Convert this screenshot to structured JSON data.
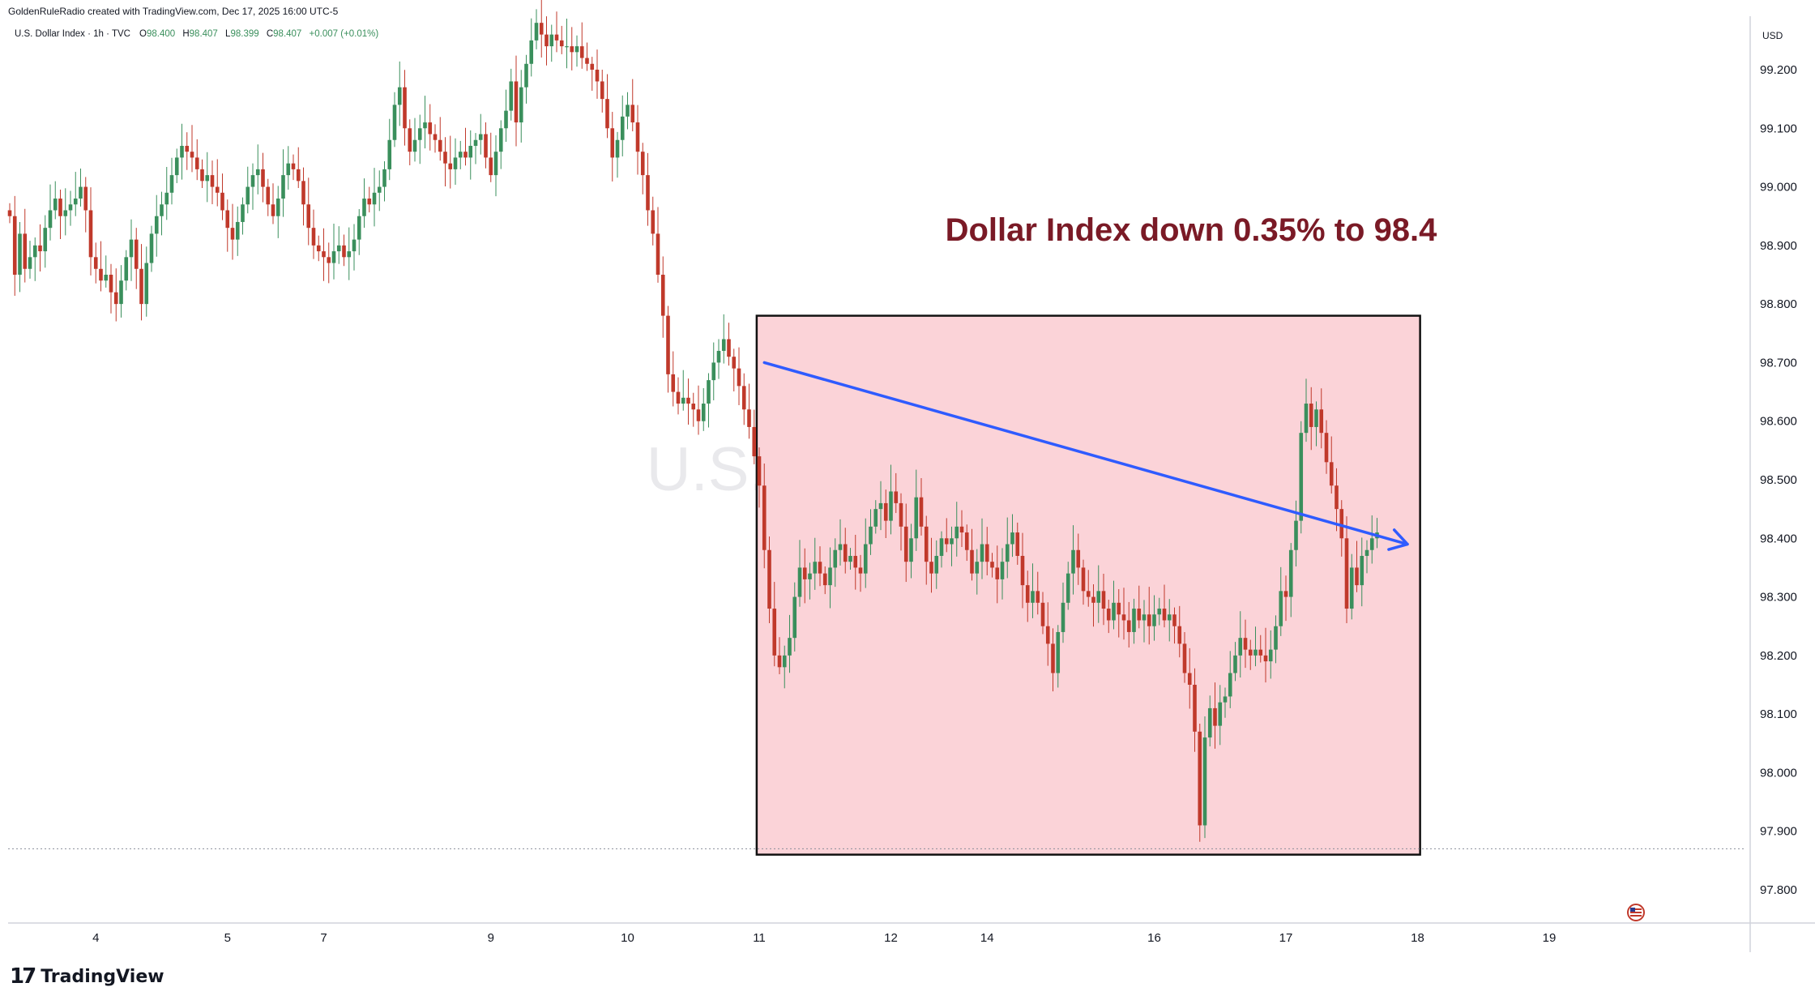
{
  "header": {
    "credit": "GoldenRuleRadio created with TradingView.com, Dec 17, 2025 16:00 UTC-5",
    "symbol": "U.S. Dollar Index · 1h · TVC",
    "ohlc": [
      {
        "label": "O",
        "value": "98.400"
      },
      {
        "label": "H",
        "value": "98.407"
      },
      {
        "label": "L",
        "value": "98.399"
      },
      {
        "label": "C",
        "value": "98.407"
      }
    ],
    "change": "+0.007 (+0.01%)"
  },
  "watermark": "U.S. Dollar Index",
  "annotation": "Dollar Index down 0.35% to 98.4",
  "currency": "USD",
  "brand": {
    "logo": "17",
    "name": "TradingView"
  },
  "colors": {
    "up": "#3a8f5c",
    "down": "#c0392b",
    "annotation": "#7a1a26",
    "box_fill": "#fbd3d8",
    "arrow": "#2f5bff"
  },
  "icons": {
    "flag": "us-flag-icon"
  },
  "chart_data": {
    "type": "candlestick",
    "title": "U.S. Dollar Index · 1h · TVC",
    "ylim": [
      97.75,
      99.32
    ],
    "y_ticks": [
      "99.200",
      "99.100",
      "99.000",
      "98.900",
      "98.800",
      "98.700",
      "98.600",
      "98.500",
      "98.400",
      "98.300",
      "98.200",
      "98.100",
      "98.000",
      "97.900",
      "97.800"
    ],
    "x_ticks": [
      "4",
      "5",
      "7",
      "9",
      "10",
      "11",
      "12",
      "14",
      "16",
      "17",
      "18",
      "19"
    ],
    "x_tick_index": [
      17,
      43,
      62,
      95,
      122,
      148,
      174,
      193,
      226,
      252,
      278,
      304
    ],
    "x_index_range": [
      0,
      310
    ],
    "series": [
      {
        "type": "candlestick",
        "closes": [
          98.95,
          98.85,
          98.92,
          98.86,
          98.88,
          98.9,
          98.89,
          98.93,
          98.96,
          98.98,
          98.95,
          98.96,
          98.97,
          98.98,
          99.0,
          98.96,
          98.88,
          98.86,
          98.84,
          98.85,
          98.82,
          98.8,
          98.84,
          98.88,
          98.91,
          98.86,
          98.8,
          98.87,
          98.92,
          98.95,
          98.97,
          98.99,
          99.02,
          99.05,
          99.07,
          99.06,
          99.05,
          99.03,
          99.01,
          99.02,
          99.0,
          98.99,
          98.96,
          98.93,
          98.91,
          98.94,
          98.97,
          99.0,
          99.02,
          99.03,
          99.0,
          98.97,
          98.95,
          98.98,
          99.02,
          99.04,
          99.03,
          99.01,
          98.97,
          98.93,
          98.9,
          98.89,
          98.88,
          98.87,
          98.89,
          98.9,
          98.88,
          98.89,
          98.91,
          98.95,
          98.98,
          98.97,
          98.99,
          99.0,
          99.03,
          99.08,
          99.14,
          99.17,
          99.1,
          99.06,
          99.08,
          99.1,
          99.11,
          99.09,
          99.08,
          99.06,
          99.04,
          99.03,
          99.05,
          99.06,
          99.05,
          99.07,
          99.08,
          99.09,
          99.05,
          99.02,
          99.06,
          99.1,
          99.13,
          99.18,
          99.11,
          99.17,
          99.21,
          99.25,
          99.28,
          99.26,
          99.24,
          99.26,
          99.25,
          99.24,
          99.24,
          99.23,
          99.24,
          99.22,
          99.21,
          99.2,
          99.18,
          99.15,
          99.1,
          99.05,
          99.08,
          99.12,
          99.14,
          99.11,
          99.06,
          99.02,
          98.96,
          98.92,
          98.85,
          98.78,
          98.68,
          98.65,
          98.63,
          98.64,
          98.63,
          98.62,
          98.6,
          98.63,
          98.67,
          98.7,
          98.72,
          98.74,
          98.71,
          98.69,
          98.66,
          98.62,
          98.59,
          98.54,
          98.49,
          98.38,
          98.28,
          98.2,
          98.18,
          98.2,
          98.23,
          98.3,
          98.35,
          98.33,
          98.34,
          98.36,
          98.34,
          98.32,
          98.35,
          98.38,
          98.39,
          98.36,
          98.37,
          98.35,
          98.34,
          98.39,
          98.42,
          98.45,
          98.46,
          98.43,
          98.48,
          98.46,
          98.42,
          98.36,
          98.4,
          98.47,
          98.42,
          98.36,
          98.34,
          98.37,
          98.4,
          98.39,
          98.4,
          98.42,
          98.41,
          98.38,
          98.34,
          98.36,
          98.39,
          98.36,
          98.35,
          98.33,
          98.36,
          98.39,
          98.41,
          98.37,
          98.32,
          98.29,
          98.31,
          98.29,
          98.25,
          98.22,
          98.17,
          98.24,
          98.29,
          98.34,
          98.38,
          98.35,
          98.31,
          98.3,
          98.29,
          98.31,
          98.28,
          98.26,
          98.29,
          98.27,
          98.26,
          98.24,
          98.28,
          98.26,
          98.27,
          98.25,
          98.27,
          98.28,
          98.26,
          98.27,
          98.25,
          98.22,
          98.17,
          98.15,
          98.07,
          97.91,
          98.06,
          98.11,
          98.08,
          98.12,
          98.13,
          98.17,
          98.2,
          98.23,
          98.21,
          98.2,
          98.21,
          98.2,
          98.19,
          98.21,
          98.25,
          98.31,
          98.3,
          98.38,
          98.43,
          98.58,
          98.63,
          98.59,
          98.62,
          98.58,
          98.53,
          98.49,
          98.45,
          98.4,
          98.28,
          98.35,
          98.32,
          98.37,
          98.38,
          98.4,
          98.41
        ]
      }
    ],
    "annotations": [
      {
        "type": "rectangle",
        "x_index": [
          147.5,
          278.5
        ],
        "y": [
          97.86,
          98.78
        ]
      },
      {
        "type": "arrow",
        "from": {
          "x_index": 149,
          "y": 98.7
        },
        "to": {
          "x_index": 276,
          "y": 98.39
        }
      },
      {
        "type": "hline",
        "y": 97.87,
        "style": "dotted"
      }
    ]
  }
}
